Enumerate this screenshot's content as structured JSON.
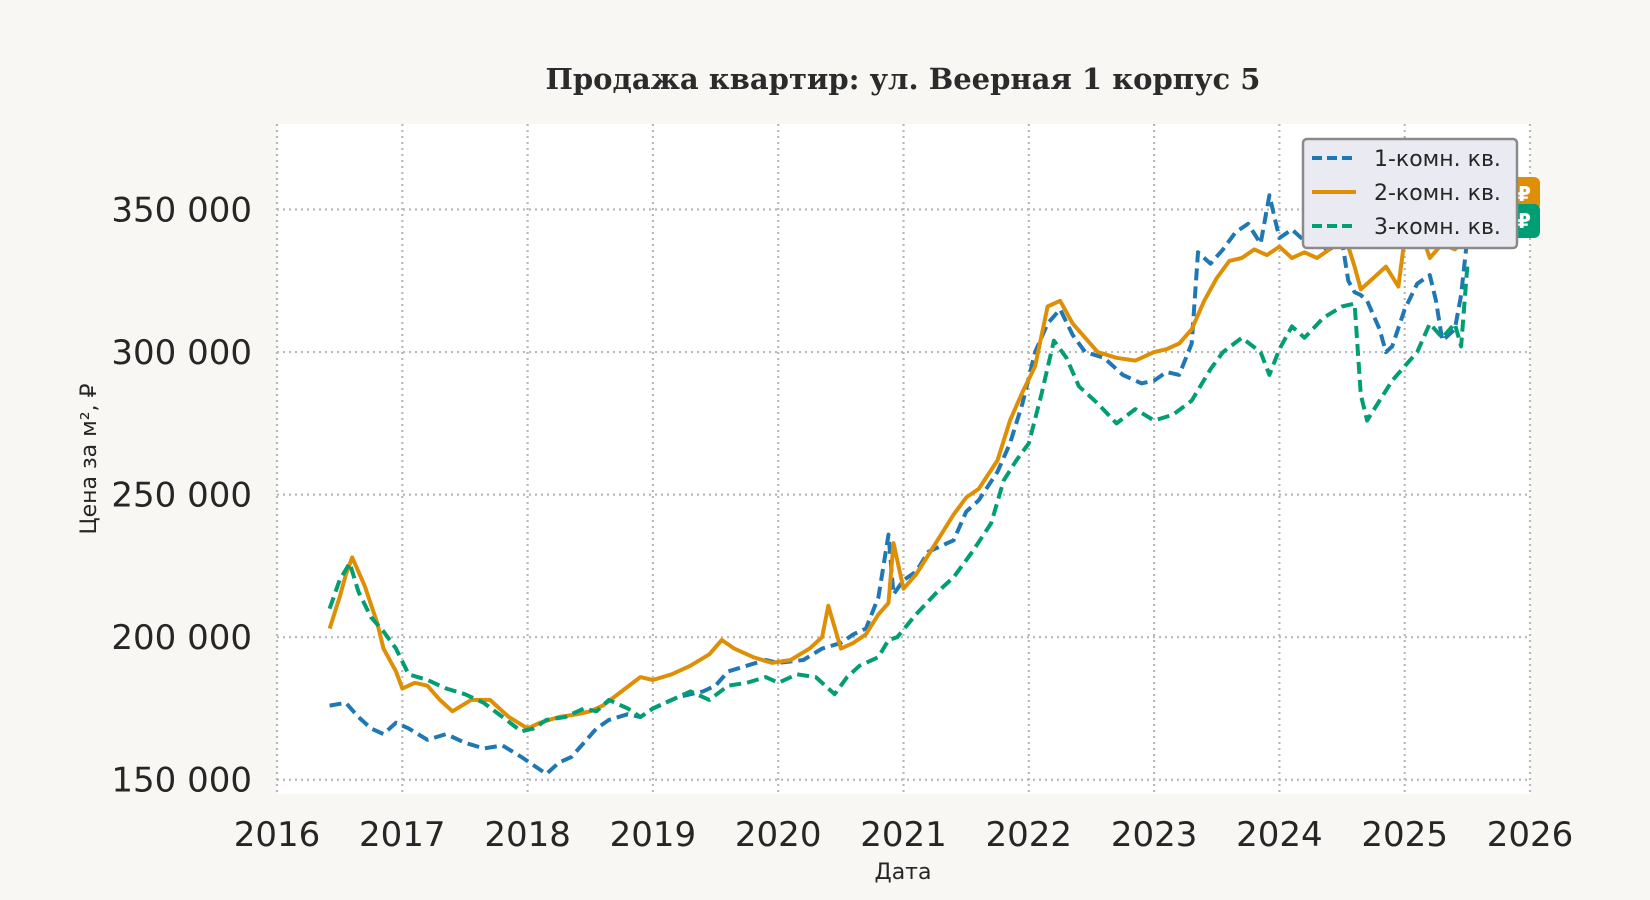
{
  "chart_data": {
    "type": "line",
    "title": "Продажа квартир: ул. Веерная 1 корпус 5",
    "xlabel": "Дата",
    "ylabel": "Цена за м², ₽",
    "xlim": [
      2016.0,
      2026.0
    ],
    "ylim": [
      145000,
      380000
    ],
    "grid": true,
    "legend_position": "top-right",
    "x_ticks": [
      {
        "value": 2016,
        "label": "2016"
      },
      {
        "value": 2017,
        "label": "2017"
      },
      {
        "value": 2018,
        "label": "2018"
      },
      {
        "value": 2019,
        "label": "2019"
      },
      {
        "value": 2020,
        "label": "2020"
      },
      {
        "value": 2021,
        "label": "2021"
      },
      {
        "value": 2022,
        "label": "2022"
      },
      {
        "value": 2023,
        "label": "2023"
      },
      {
        "value": 2024,
        "label": "2024"
      },
      {
        "value": 2025,
        "label": "2025"
      },
      {
        "value": 2026,
        "label": "2026"
      }
    ],
    "y_ticks": [
      {
        "value": 150000,
        "label": "150 000"
      },
      {
        "value": 200000,
        "label": "200 000"
      },
      {
        "value": 250000,
        "label": "250 000"
      },
      {
        "value": 300000,
        "label": "300 000"
      },
      {
        "value": 350000,
        "label": "350 000"
      }
    ],
    "series": [
      {
        "name": "1-комн. кв.",
        "color": "#1f77b4",
        "style": "dashed",
        "x": [
          2016.42,
          2016.55,
          2016.65,
          2016.75,
          2016.85,
          2016.95,
          2017.05,
          2017.2,
          2017.35,
          2017.5,
          2017.65,
          2017.8,
          2017.95,
          2018.05,
          2018.15,
          2018.25,
          2018.35,
          2018.45,
          2018.55,
          2018.65,
          2018.8,
          2018.9,
          2019.0,
          2019.2,
          2019.4,
          2019.5,
          2019.6,
          2019.75,
          2019.9,
          2020.0,
          2020.2,
          2020.35,
          2020.5,
          2020.6,
          2020.7,
          2020.8,
          2020.88,
          2020.92,
          2021.0,
          2021.1,
          2021.2,
          2021.3,
          2021.4,
          2021.5,
          2021.6,
          2021.75,
          2021.85,
          2021.95,
          2022.05,
          2022.15,
          2022.25,
          2022.35,
          2022.45,
          2022.6,
          2022.75,
          2022.9,
          2023.0,
          2023.1,
          2023.2,
          2023.3,
          2023.35,
          2023.45,
          2023.55,
          2023.65,
          2023.75,
          2023.85,
          2023.92,
          2024.0,
          2024.1,
          2024.2,
          2024.3,
          2024.4,
          2024.5,
          2024.55,
          2024.6,
          2024.65,
          2024.7,
          2024.8,
          2024.85,
          2024.9,
          2025.0,
          2025.1,
          2025.2,
          2025.25,
          2025.3,
          2025.4,
          2025.45,
          2025.5
        ],
        "y": [
          176000,
          177000,
          172000,
          168000,
          166000,
          170000,
          168000,
          164000,
          166000,
          163000,
          161000,
          162000,
          158000,
          155000,
          152000,
          156000,
          158000,
          163000,
          168000,
          171000,
          173000,
          172000,
          175000,
          179000,
          181000,
          183000,
          188000,
          190000,
          192000,
          191000,
          192000,
          196000,
          198000,
          201000,
          203000,
          214000,
          236000,
          215000,
          220000,
          223000,
          230000,
          232000,
          234000,
          244000,
          248000,
          258000,
          268000,
          282000,
          300000,
          310000,
          315000,
          306000,
          300000,
          298000,
          292000,
          289000,
          290000,
          293000,
          292000,
          303000,
          335000,
          331000,
          336000,
          342000,
          345000,
          338000,
          355000,
          340000,
          343000,
          339000,
          337000,
          336000,
          339000,
          325000,
          321000,
          320000,
          318000,
          308000,
          300000,
          302000,
          315000,
          324000,
          327000,
          318000,
          304000,
          308000,
          320000,
          340000
        ]
      },
      {
        "name": "2-комн. кв.",
        "color": "#de8f05",
        "style": "solid",
        "x": [
          2016.42,
          2016.5,
          2016.55,
          2016.6,
          2016.7,
          2016.8,
          2016.85,
          2016.95,
          2017.0,
          2017.1,
          2017.2,
          2017.3,
          2017.4,
          2017.55,
          2017.7,
          2017.85,
          2018.0,
          2018.1,
          2018.25,
          2018.4,
          2018.5,
          2018.6,
          2018.75,
          2018.9,
          2019.0,
          2019.15,
          2019.3,
          2019.45,
          2019.55,
          2019.65,
          2019.8,
          2019.95,
          2020.1,
          2020.25,
          2020.35,
          2020.4,
          2020.5,
          2020.6,
          2020.7,
          2020.8,
          2020.88,
          2020.92,
          2021.0,
          2021.1,
          2021.2,
          2021.3,
          2021.4,
          2021.5,
          2021.6,
          2021.75,
          2021.85,
          2021.95,
          2022.05,
          2022.15,
          2022.25,
          2022.35,
          2022.45,
          2022.55,
          2022.7,
          2022.85,
          2023.0,
          2023.1,
          2023.2,
          2023.3,
          2023.4,
          2023.5,
          2023.6,
          2023.7,
          2023.8,
          2023.9,
          2024.0,
          2024.1,
          2024.2,
          2024.3,
          2024.4,
          2024.5,
          2024.6,
          2024.65,
          2024.75,
          2024.85,
          2024.95,
          2025.0,
          2025.1,
          2025.2,
          2025.3,
          2025.4,
          2025.5
        ],
        "y": [
          203000,
          214000,
          222000,
          228000,
          218000,
          205000,
          196000,
          188000,
          182000,
          184000,
          183000,
          178000,
          174000,
          178000,
          178000,
          172000,
          168000,
          170000,
          172000,
          173000,
          174000,
          176000,
          181000,
          186000,
          185000,
          187000,
          190000,
          194000,
          199000,
          196000,
          193000,
          191000,
          192000,
          196000,
          200000,
          211000,
          196000,
          198000,
          201000,
          208000,
          212000,
          233000,
          217000,
          222000,
          229000,
          236000,
          243000,
          249000,
          252000,
          262000,
          276000,
          286000,
          295000,
          316000,
          318000,
          310000,
          305000,
          300000,
          298000,
          297000,
          300000,
          301000,
          303000,
          308000,
          318000,
          326000,
          332000,
          333000,
          336000,
          334000,
          337000,
          333000,
          335000,
          333000,
          336000,
          344000,
          330000,
          322000,
          326000,
          330000,
          323000,
          340000,
          346000,
          333000,
          338000,
          336000,
          340000
        ]
      },
      {
        "name": "3-комн. кв.",
        "color": "#029e73",
        "style": "dashed",
        "x": [
          2016.42,
          2016.5,
          2016.58,
          2016.65,
          2016.75,
          2016.85,
          2016.95,
          2017.05,
          2017.2,
          2017.35,
          2017.5,
          2017.65,
          2017.8,
          2017.95,
          2018.05,
          2018.15,
          2018.3,
          2018.45,
          2018.55,
          2018.65,
          2018.8,
          2018.9,
          2019.0,
          2019.15,
          2019.3,
          2019.45,
          2019.6,
          2019.75,
          2019.9,
          2020.0,
          2020.15,
          2020.3,
          2020.45,
          2020.55,
          2020.65,
          2020.8,
          2020.88,
          2020.95,
          2021.1,
          2021.25,
          2021.4,
          2021.55,
          2021.7,
          2021.8,
          2021.9,
          2022.0,
          2022.1,
          2022.2,
          2022.3,
          2022.4,
          2022.55,
          2022.7,
          2022.85,
          2023.0,
          2023.15,
          2023.3,
          2023.45,
          2023.55,
          2023.7,
          2023.85,
          2023.92,
          2024.0,
          2024.1,
          2024.2,
          2024.35,
          2024.5,
          2024.6,
          2024.65,
          2024.7,
          2024.8,
          2024.9,
          2025.0,
          2025.1,
          2025.2,
          2025.3,
          2025.4,
          2025.45,
          2025.5
        ],
        "y": [
          210000,
          220000,
          226000,
          216000,
          207000,
          202000,
          196000,
          187000,
          185000,
          182000,
          180000,
          177000,
          172000,
          167000,
          168000,
          171000,
          172000,
          175000,
          174000,
          178000,
          175000,
          172000,
          175000,
          178000,
          181000,
          178000,
          183000,
          184000,
          186000,
          184000,
          187000,
          186000,
          180000,
          186000,
          190000,
          193000,
          199000,
          200000,
          208000,
          215000,
          221000,
          230000,
          240000,
          255000,
          262000,
          268000,
          285000,
          304000,
          298000,
          288000,
          282000,
          275000,
          280000,
          276000,
          278000,
          283000,
          294000,
          300000,
          305000,
          300000,
          292000,
          301000,
          309000,
          305000,
          312000,
          316000,
          317000,
          285000,
          276000,
          283000,
          290000,
          295000,
          300000,
          310000,
          305000,
          310000,
          302000,
          330000
        ]
      }
    ]
  },
  "end_tags": [
    {
      "series": "2-комн. кв.",
      "color": "#de8f05",
      "text": "₽"
    },
    {
      "series": "3-комн. кв.",
      "color": "#029e73",
      "text": "₽"
    }
  ]
}
